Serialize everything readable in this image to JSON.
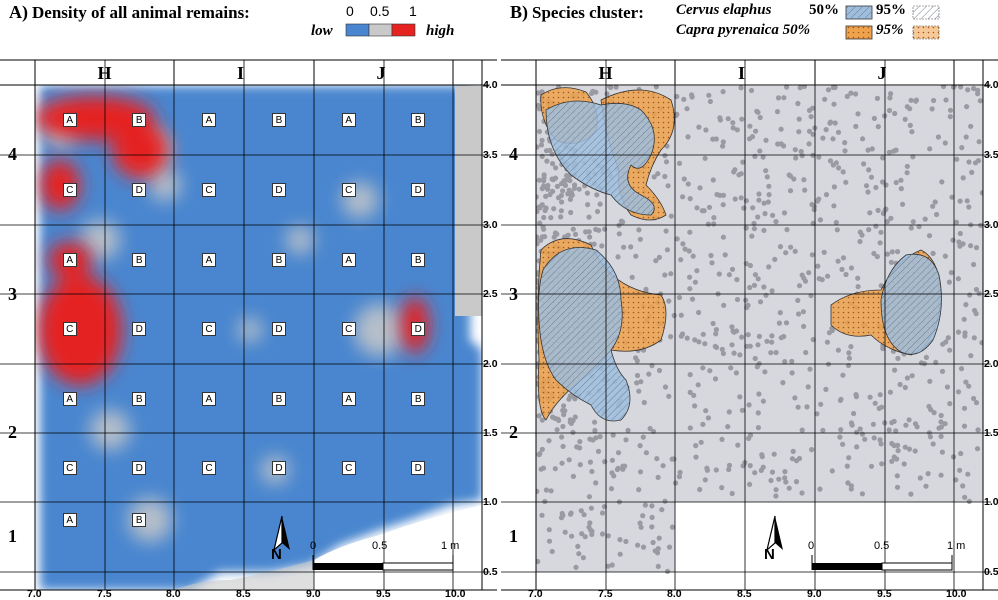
{
  "panelA": {
    "tag": "A)",
    "title": "Density of all animal remains:",
    "legend": {
      "low": "low",
      "high": "high",
      "ticks": [
        "0",
        "0.5",
        "1"
      ],
      "colors": [
        "#4a86cf",
        "#c9c9c9",
        "#e52421"
      ]
    }
  },
  "panelB": {
    "tag": "B)",
    "title": "Species cluster:",
    "species1": {
      "name": "Cervus elaphus",
      "p50": "50%",
      "p95": "95%",
      "color": "#9fbede"
    },
    "species2": {
      "name": "Capra pyrenaica 50%",
      "p95": "95%",
      "color": "#eea24c"
    }
  },
  "grid": {
    "columns": [
      "H",
      "I",
      "J"
    ],
    "rows": [
      "4",
      "3",
      "2",
      "1"
    ],
    "cell_labels": [
      "A",
      "B",
      "C",
      "D"
    ],
    "x_ticks": [
      "7.0",
      "7.5",
      "8.0",
      "8.5",
      "9.0",
      "9.5",
      "10.0"
    ],
    "y_ticks": [
      "4.0",
      "3.5",
      "3.0",
      "2.5",
      "2.0",
      "1.5",
      "1.0",
      "0.5"
    ]
  },
  "scale": {
    "labels": [
      "0",
      "0.5",
      "1 m"
    ]
  },
  "north": "N",
  "colors": {
    "density_low": "#4a86cf",
    "density_mid": "#c9c9c9",
    "density_high": "#e52421",
    "cluster_gray": "#d6d8de",
    "dot": "#9a9aa2"
  }
}
